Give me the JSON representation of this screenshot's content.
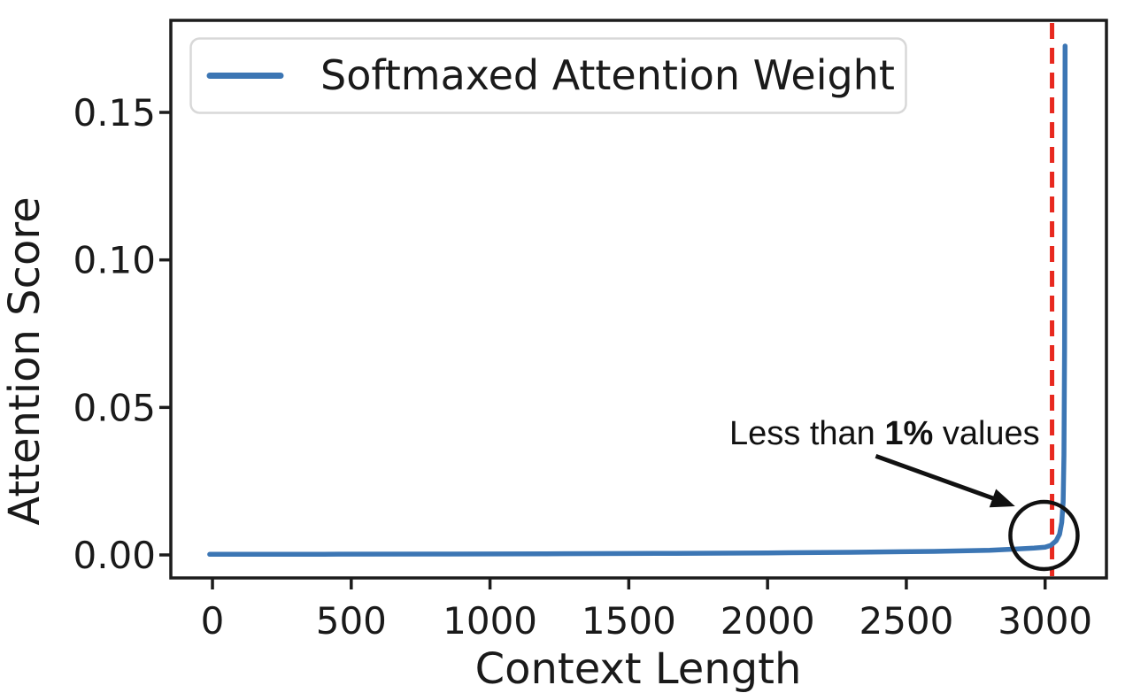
{
  "figure": {
    "background": "#ffffff",
    "spine_color": "#1c1c1c",
    "text_color": "#1a1a1a"
  },
  "chart_data": {
    "type": "line",
    "title": "",
    "xlabel": "Context Length",
    "ylabel": "Attention Score",
    "x_ticks": [
      0,
      500,
      1000,
      1500,
      2000,
      2500,
      3000
    ],
    "y_ticks": [
      0,
      0.05,
      0.1,
      0.15
    ],
    "y_tick_labels": [
      "0.00",
      "0.05",
      "0.10",
      "0.15"
    ],
    "xlim": [
      -150,
      3221
    ],
    "ylim": [
      -0.0078,
      0.1812
    ],
    "grid": false,
    "legend_position": "upper-left",
    "series": [
      {
        "name": "Softmaxed Attention Weight",
        "color": "#3C76B4",
        "line_width": 5.5,
        "points": [
          [
            -10,
            0.0002
          ],
          [
            400,
            0.00025
          ],
          [
            800,
            0.0003
          ],
          [
            1200,
            0.0004
          ],
          [
            1600,
            0.0005
          ],
          [
            2000,
            0.0007
          ],
          [
            2300,
            0.0009
          ],
          [
            2600,
            0.0012
          ],
          [
            2800,
            0.0016
          ],
          [
            2900,
            0.002
          ],
          [
            2960,
            0.0023
          ],
          [
            3000,
            0.0026
          ],
          [
            3020,
            0.0032
          ],
          [
            3040,
            0.0048
          ],
          [
            3052,
            0.007
          ],
          [
            3060,
            0.011
          ],
          [
            3065,
            0.018
          ],
          [
            3068,
            0.034
          ],
          [
            3070,
            0.07
          ],
          [
            3071,
            0.12
          ],
          [
            3072,
            0.1725
          ]
        ]
      }
    ],
    "vline": {
      "x": 3025,
      "color": "#E8291F",
      "style": "dashed",
      "width": 5,
      "dash": [
        18,
        10
      ]
    },
    "annotation": {
      "text_prefix": "Less than ",
      "text_bold": "1%",
      "text_suffix": " values",
      "text_anchor": {
        "x": 1862,
        "y": 0.0375
      },
      "arrow_from": {
        "x": 2390,
        "y": 0.0335
      },
      "arrow_to": {
        "x": 2892,
        "y": 0.0165
      },
      "circle_at": {
        "x": 2996,
        "y": 0.0066
      },
      "circle_rx": 38,
      "circle_ry": 38,
      "color": "#111111"
    }
  },
  "legend": {
    "label": "Softmaxed Attention Weight",
    "border_color": "#d8d8d8",
    "background": "#ffffff"
  }
}
